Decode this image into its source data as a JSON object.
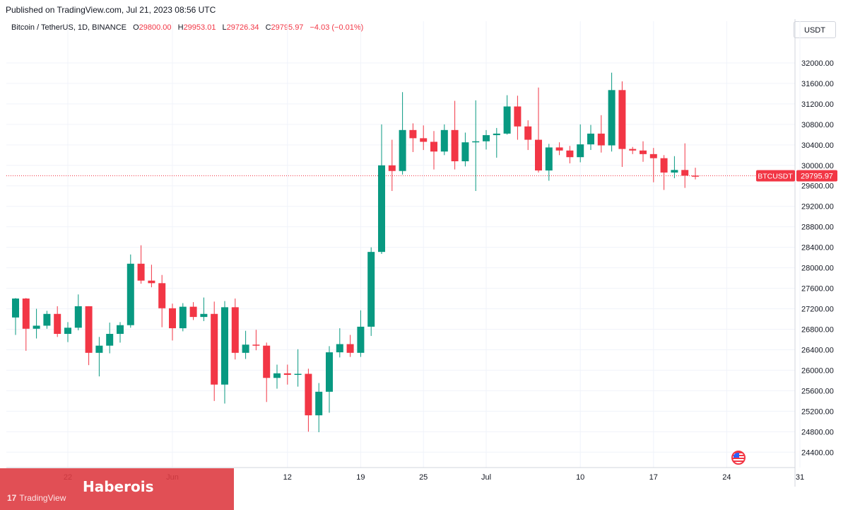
{
  "header": {
    "published": "Published on TradingView.com, Jul 21, 2023 08:56 UTC",
    "symbol": "Bitcoin / TetherUS, 1D, BINANCE",
    "open_label": "O",
    "open": "29800.00",
    "high_label": "H",
    "high": "29953.01",
    "low_label": "L",
    "low": "29726.34",
    "close_label": "C",
    "close": "29795.97",
    "change": "−4.03 (−0.01%)",
    "currency": "USDT"
  },
  "colors": {
    "up": "#089981",
    "down": "#f23645",
    "grid": "#f0f3fa",
    "text": "#131722"
  },
  "watermark": {
    "brand": "Haberois",
    "tv_text": "TradingView",
    "tv_logo": "17"
  },
  "flag_icon": "us-flag-icon",
  "chart_data": {
    "type": "candlestick",
    "title": "Bitcoin / TetherUS, 1D, BINANCE",
    "ylim": [
      24100,
      32400
    ],
    "y_ticks": [
      24400,
      24800,
      25200,
      25600,
      26000,
      26400,
      26800,
      27200,
      27600,
      28000,
      28400,
      28800,
      29200,
      29600,
      30000,
      30400,
      30800,
      31200,
      31600,
      32000
    ],
    "y_tick_labels": [
      "24400.00",
      "24800.00",
      "25200.00",
      "25600.00",
      "26000.00",
      "26400.00",
      "26800.00",
      "27200.00",
      "27600.00",
      "28000.00",
      "28400.00",
      "28800.00",
      "29200.00",
      "29600.00",
      "30000.00",
      "30400.00",
      "30800.00",
      "31200.00",
      "31600.00",
      "32000.00"
    ],
    "x_ticks": [
      {
        "label": "22",
        "day": 5
      },
      {
        "label": "Jun",
        "day": 15
      },
      {
        "label": "12",
        "day": 26
      },
      {
        "label": "19",
        "day": 33
      },
      {
        "label": "25",
        "day": 39
      },
      {
        "label": "Jul",
        "day": 45
      },
      {
        "label": "10",
        "day": 54
      },
      {
        "label": "17",
        "day": 61
      },
      {
        "label": "24",
        "day": 68
      },
      {
        "label": "31",
        "day": 75
      }
    ],
    "last_price": {
      "symbol": "BTCUSDT",
      "value": 29795.97,
      "label": "29795.97"
    },
    "candles": [
      {
        "o": 27030,
        "h": 27410,
        "l": 26690,
        "c": 27400
      },
      {
        "o": 27400,
        "h": 27410,
        "l": 26380,
        "c": 26810
      },
      {
        "o": 26810,
        "h": 27200,
        "l": 26620,
        "c": 26870
      },
      {
        "o": 26870,
        "h": 27160,
        "l": 26810,
        "c": 27100
      },
      {
        "o": 27100,
        "h": 27250,
        "l": 26650,
        "c": 26710
      },
      {
        "o": 26710,
        "h": 26940,
        "l": 26550,
        "c": 26830
      },
      {
        "o": 26830,
        "h": 27480,
        "l": 26780,
        "c": 27250
      },
      {
        "o": 27250,
        "h": 27250,
        "l": 26100,
        "c": 26340
      },
      {
        "o": 26340,
        "h": 26650,
        "l": 25880,
        "c": 26480
      },
      {
        "o": 26480,
        "h": 26930,
        "l": 26330,
        "c": 26710
      },
      {
        "o": 26710,
        "h": 26940,
        "l": 26540,
        "c": 26880
      },
      {
        "o": 26880,
        "h": 28260,
        "l": 26830,
        "c": 28080
      },
      {
        "o": 28080,
        "h": 28440,
        "l": 27690,
        "c": 27750
      },
      {
        "o": 27750,
        "h": 28060,
        "l": 27620,
        "c": 27700
      },
      {
        "o": 27700,
        "h": 27860,
        "l": 26840,
        "c": 27210
      },
      {
        "o": 27210,
        "h": 27300,
        "l": 26580,
        "c": 26820
      },
      {
        "o": 26820,
        "h": 27310,
        "l": 26760,
        "c": 27240
      },
      {
        "o": 27240,
        "h": 27330,
        "l": 26980,
        "c": 27040
      },
      {
        "o": 27040,
        "h": 27420,
        "l": 26960,
        "c": 27100
      },
      {
        "o": 27100,
        "h": 27340,
        "l": 25400,
        "c": 25720
      },
      {
        "o": 25720,
        "h": 27350,
        "l": 25350,
        "c": 27230
      },
      {
        "o": 27230,
        "h": 27400,
        "l": 26210,
        "c": 26340
      },
      {
        "o": 26340,
        "h": 26770,
        "l": 26220,
        "c": 26500
      },
      {
        "o": 26500,
        "h": 26790,
        "l": 26390,
        "c": 26480
      },
      {
        "o": 26480,
        "h": 26540,
        "l": 25380,
        "c": 25850
      },
      {
        "o": 25850,
        "h": 26110,
        "l": 25640,
        "c": 25940
      },
      {
        "o": 25940,
        "h": 26110,
        "l": 25720,
        "c": 25910
      },
      {
        "o": 25910,
        "h": 26410,
        "l": 25680,
        "c": 25930
      },
      {
        "o": 25930,
        "h": 26030,
        "l": 24800,
        "c": 25120
      },
      {
        "o": 25120,
        "h": 25750,
        "l": 24790,
        "c": 25580
      },
      {
        "o": 25580,
        "h": 26470,
        "l": 25170,
        "c": 26350
      },
      {
        "o": 26350,
        "h": 26820,
        "l": 26250,
        "c": 26510
      },
      {
        "o": 26510,
        "h": 26690,
        "l": 26260,
        "c": 26340
      },
      {
        "o": 26340,
        "h": 27170,
        "l": 26260,
        "c": 26850
      },
      {
        "o": 26850,
        "h": 28400,
        "l": 26670,
        "c": 28310
      },
      {
        "o": 28310,
        "h": 30800,
        "l": 28270,
        "c": 30000
      },
      {
        "o": 30000,
        "h": 30500,
        "l": 29500,
        "c": 29890
      },
      {
        "o": 29890,
        "h": 31430,
        "l": 29820,
        "c": 30690
      },
      {
        "o": 30690,
        "h": 30820,
        "l": 30260,
        "c": 30530
      },
      {
        "o": 30530,
        "h": 30780,
        "l": 30300,
        "c": 30460
      },
      {
        "o": 30460,
        "h": 30670,
        "l": 29920,
        "c": 30270
      },
      {
        "o": 30270,
        "h": 30800,
        "l": 30200,
        "c": 30690
      },
      {
        "o": 30690,
        "h": 31260,
        "l": 29920,
        "c": 30080
      },
      {
        "o": 30080,
        "h": 30640,
        "l": 29980,
        "c": 30450
      },
      {
        "o": 30450,
        "h": 31270,
        "l": 29500,
        "c": 30470
      },
      {
        "o": 30470,
        "h": 30690,
        "l": 30310,
        "c": 30590
      },
      {
        "o": 30590,
        "h": 30730,
        "l": 30150,
        "c": 30620
      },
      {
        "o": 30620,
        "h": 31370,
        "l": 30600,
        "c": 31150
      },
      {
        "o": 31150,
        "h": 31360,
        "l": 30500,
        "c": 30760
      },
      {
        "o": 30760,
        "h": 30880,
        "l": 30300,
        "c": 30500
      },
      {
        "o": 30500,
        "h": 31520,
        "l": 29860,
        "c": 29900
      },
      {
        "o": 29900,
        "h": 30420,
        "l": 29700,
        "c": 30350
      },
      {
        "o": 30350,
        "h": 30450,
        "l": 30200,
        "c": 30290
      },
      {
        "o": 30290,
        "h": 30380,
        "l": 30040,
        "c": 30160
      },
      {
        "o": 30160,
        "h": 30800,
        "l": 30060,
        "c": 30410
      },
      {
        "o": 30410,
        "h": 30790,
        "l": 30300,
        "c": 30620
      },
      {
        "o": 30620,
        "h": 30980,
        "l": 30250,
        "c": 30390
      },
      {
        "o": 30390,
        "h": 31810,
        "l": 30270,
        "c": 31470
      },
      {
        "o": 31470,
        "h": 31640,
        "l": 29970,
        "c": 30320
      },
      {
        "o": 30320,
        "h": 30360,
        "l": 30220,
        "c": 30290
      },
      {
        "o": 30290,
        "h": 30470,
        "l": 30070,
        "c": 30220
      },
      {
        "o": 30220,
        "h": 30340,
        "l": 29670,
        "c": 30140
      },
      {
        "o": 30140,
        "h": 30200,
        "l": 29520,
        "c": 29860
      },
      {
        "o": 29860,
        "h": 30180,
        "l": 29750,
        "c": 29910
      },
      {
        "o": 29910,
        "h": 30430,
        "l": 29560,
        "c": 29800
      },
      {
        "o": 29800,
        "h": 29953,
        "l": 29726,
        "c": 29796
      }
    ]
  }
}
